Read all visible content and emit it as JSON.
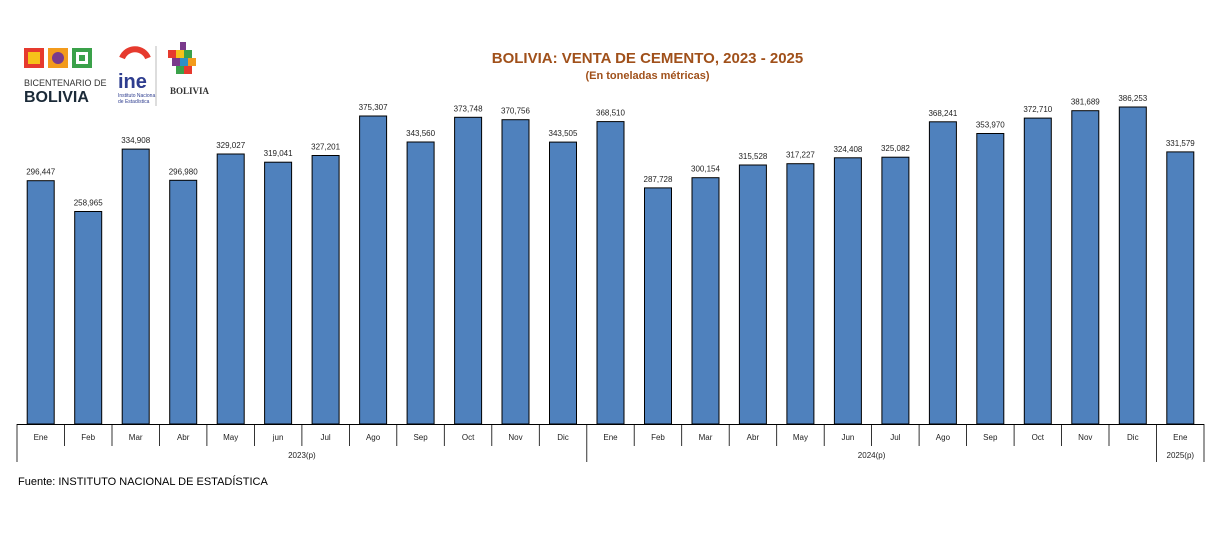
{
  "header": {
    "title": "BOLIVIA: VENTA DE CEMENTO, 2023 - 2025",
    "subtitle": "(En toneladas métricas)"
  },
  "logos": {
    "bicentenario_line1": "BICENTENARIO DE",
    "bicentenario_line2": "BOLIVIA",
    "ine_text": "ine",
    "ine_caption1": "Instituto Nacional",
    "ine_caption2": "de Estadística",
    "ministry_name": "BOLIVIA"
  },
  "footer": {
    "source": "Fuente: INSTITUTO NACIONAL DE ESTADÍSTICA"
  },
  "colors": {
    "bar": "#4f81bd",
    "bar_outline": "#000000",
    "title": "#a0501a"
  },
  "chart_data": {
    "type": "bar",
    "title": "BOLIVIA: VENTA DE CEMENTO, 2023 - 2025",
    "subtitle": "(En toneladas métricas)",
    "xlabel": "",
    "ylabel": "",
    "ylim": [
      0,
      400000
    ],
    "grid": false,
    "legend": "none",
    "categories": [
      "Ene",
      "Feb",
      "Mar",
      "Abr",
      "May",
      "jun",
      "Jul",
      "Ago",
      "Sep",
      "Oct",
      "Nov",
      "Dic",
      "Ene",
      "Feb",
      "Mar",
      "Abr",
      "May",
      "Jun",
      "Jul",
      "Ago",
      "Sep",
      "Oct",
      "Nov",
      "Dic",
      "Ene"
    ],
    "values": [
      296447,
      258965,
      334908,
      296980,
      329027,
      319041,
      327201,
      375307,
      343560,
      373748,
      370756,
      343505,
      368510,
      287728,
      300154,
      315528,
      317227,
      324408,
      325082,
      368241,
      353970,
      372710,
      381689,
      386253,
      331579
    ],
    "value_labels": [
      "296,447",
      "258,965",
      "334,908",
      "296,980",
      "329,027",
      "319,041",
      "327,201",
      "375,307",
      "343,560",
      "373,748",
      "370,756",
      "343,505",
      "368,510",
      "287,728",
      "300,154",
      "315,528",
      "317,227",
      "324,408",
      "325,082",
      "368,241",
      "353,970",
      "372,710",
      "381,689",
      "386,253",
      "331,579"
    ],
    "year_groups": [
      {
        "label": "2023(p)",
        "start": 0,
        "count": 12
      },
      {
        "label": "2024(p)",
        "start": 12,
        "count": 12
      },
      {
        "label": "2025(p)",
        "start": 24,
        "count": 1
      }
    ]
  }
}
